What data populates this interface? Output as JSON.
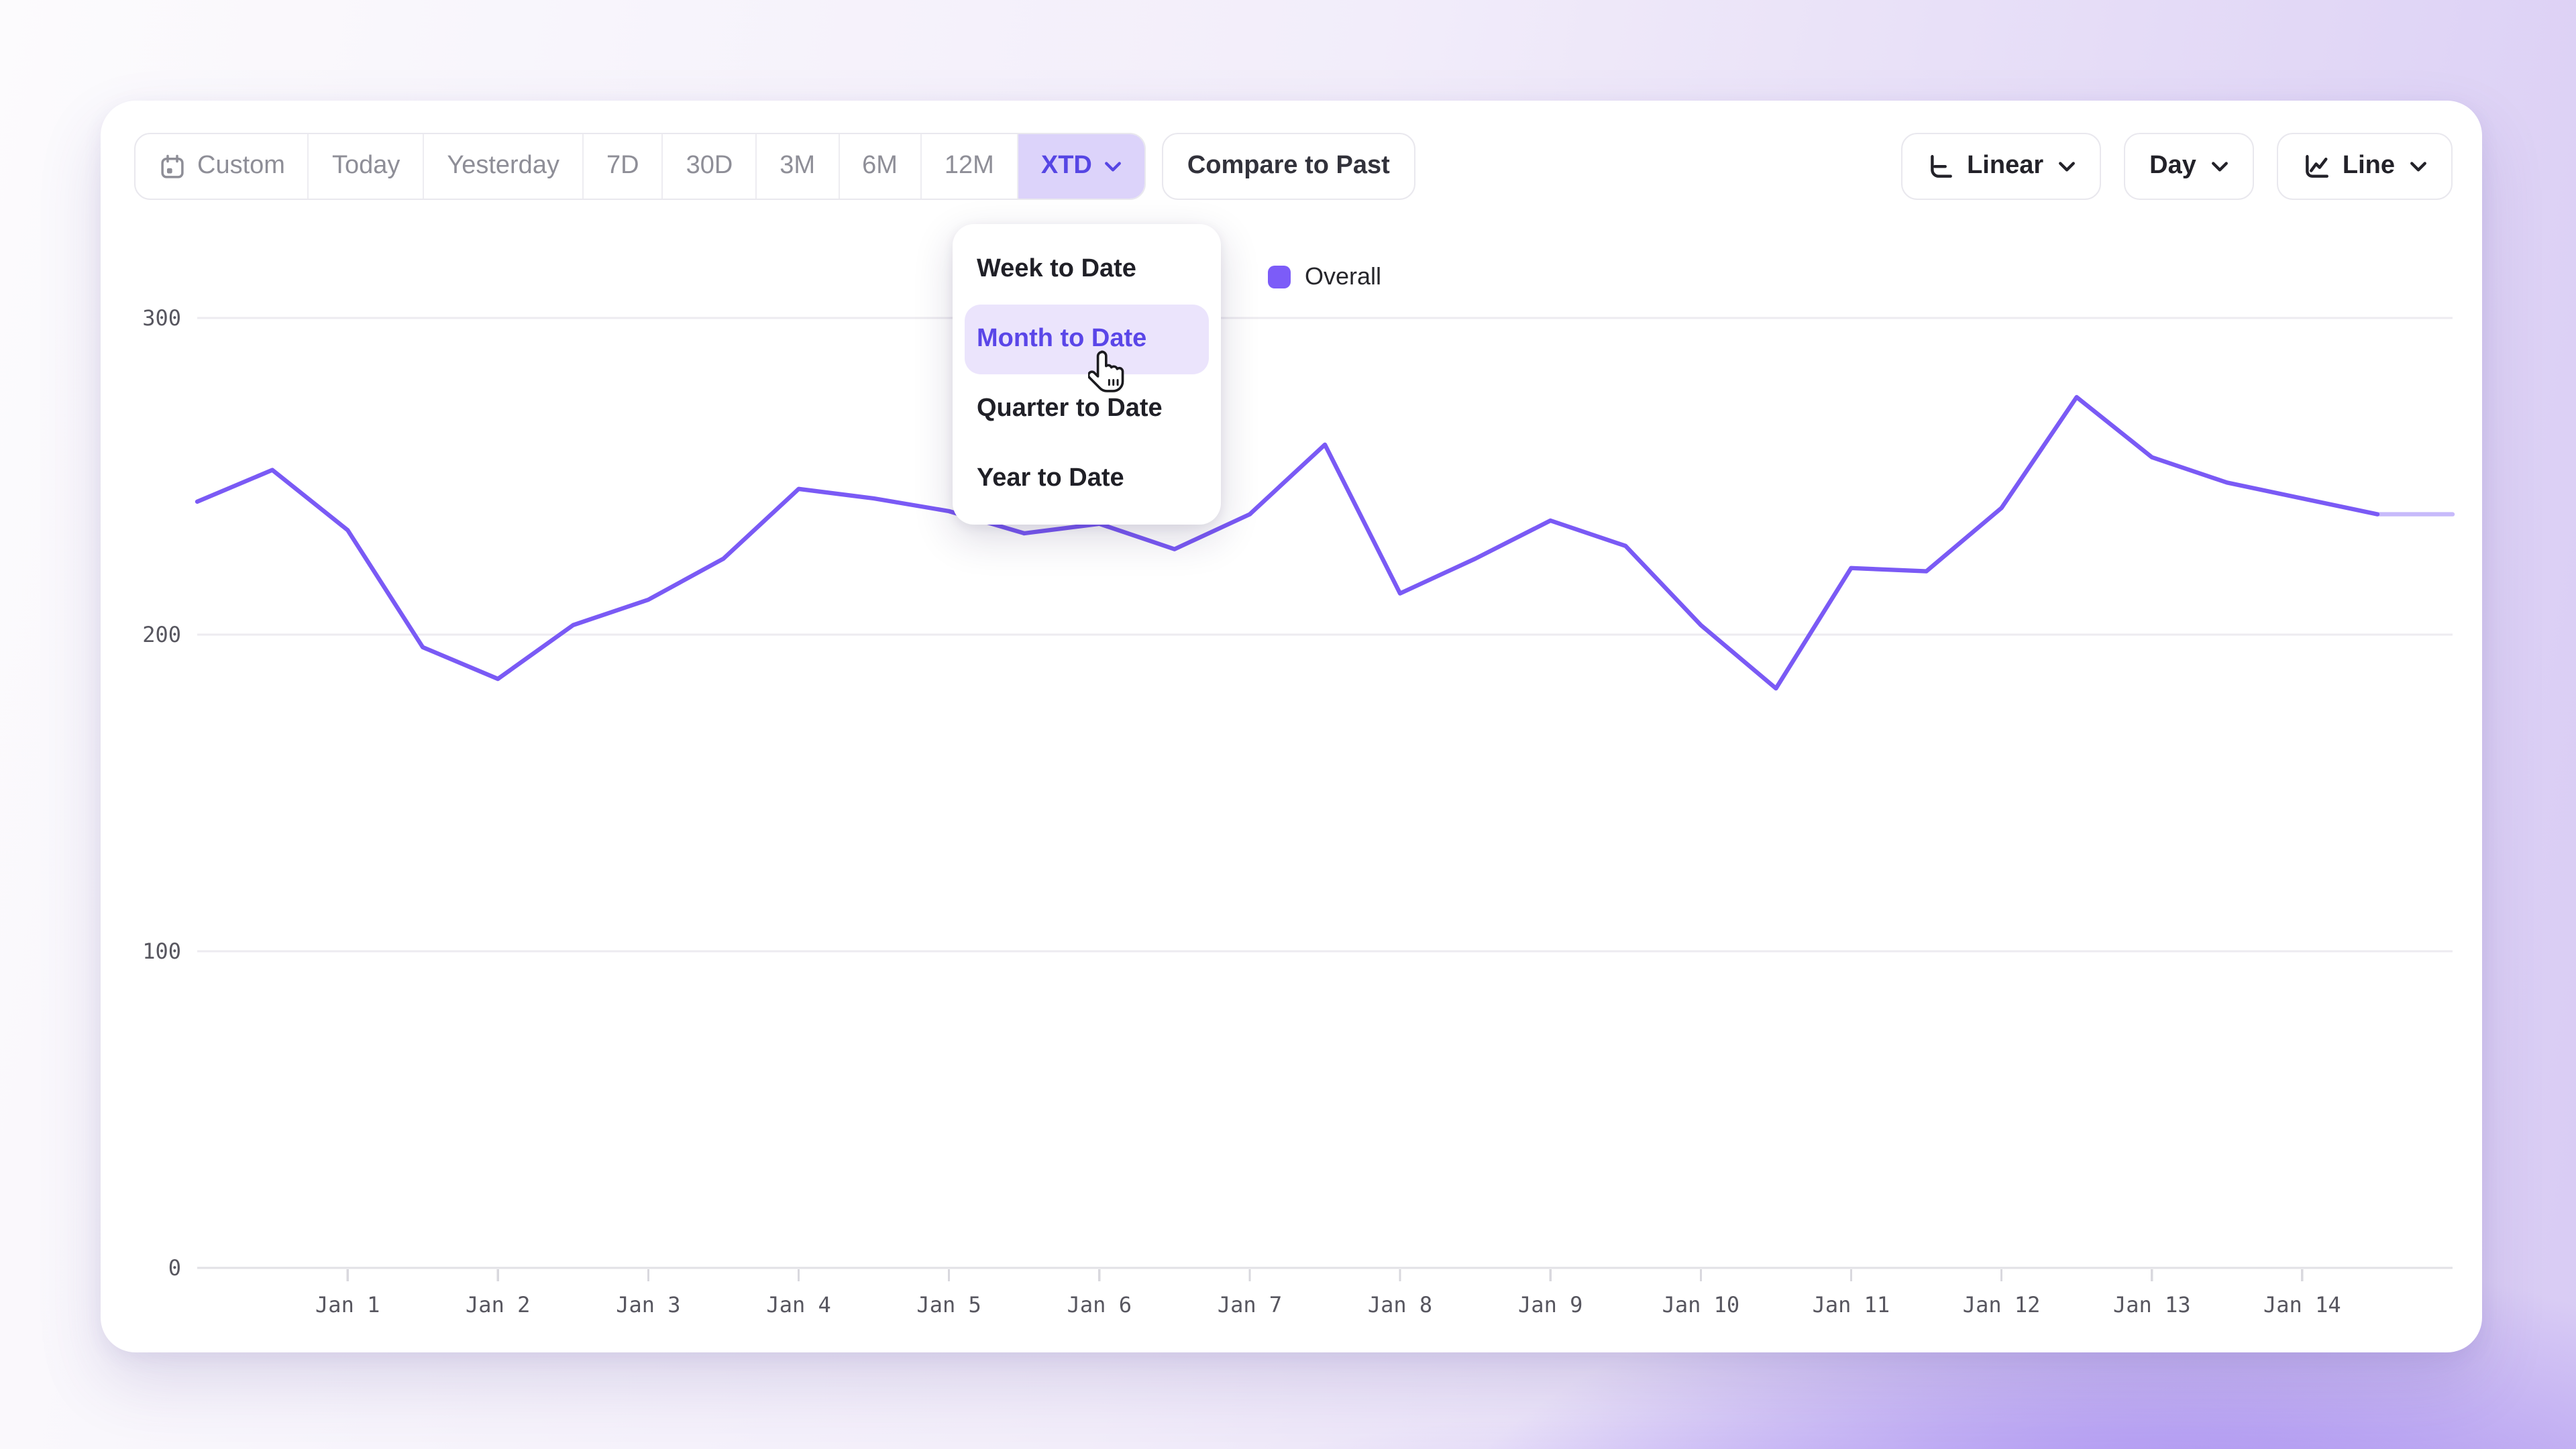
{
  "toolbar": {
    "range_buttons": [
      {
        "label": "Custom",
        "icon": "calendar-icon",
        "selected": false
      },
      {
        "label": "Today",
        "selected": false
      },
      {
        "label": "Yesterday",
        "selected": false
      },
      {
        "label": "7D",
        "selected": false
      },
      {
        "label": "30D",
        "selected": false
      },
      {
        "label": "3M",
        "selected": false
      },
      {
        "label": "6M",
        "selected": false
      },
      {
        "label": "12M",
        "selected": false
      },
      {
        "label": "XTD",
        "selected": true,
        "chevron": true
      }
    ],
    "compare_label": "Compare to Past",
    "scale_button": {
      "label": "Linear",
      "icon": "axis-scale-icon"
    },
    "granularity_button": {
      "label": "Day"
    },
    "chart_type_button": {
      "label": "Line",
      "icon": "line-chart-icon"
    }
  },
  "preset_menu": {
    "items": [
      {
        "label": "Week to Date",
        "highlighted": false
      },
      {
        "label": "Month to Date",
        "highlighted": true
      },
      {
        "label": "Quarter to Date",
        "highlighted": false
      },
      {
        "label": "Year to Date",
        "highlighted": false
      }
    ]
  },
  "legend": {
    "label": "Overall",
    "swatch_color": "#7c5cf8"
  },
  "colors": {
    "accent": "#5646e4",
    "accent_soft_bg": "#dcd3fa",
    "line": "#7a5af5",
    "menu_highlight_bg": "#ebe4fc",
    "menu_highlight_text": "#5a46e8",
    "gridline": "#edebf0",
    "axis_line": "#e2e1e6",
    "tick_label": "#57565f"
  },
  "chart_data": {
    "type": "line",
    "title": "",
    "x_tick_labels": [
      "Jan 1",
      "Jan 2",
      "Jan 3",
      "Jan 4",
      "Jan 5",
      "Jan 6",
      "Jan 7",
      "Jan 8",
      "Jan 9",
      "Jan 10",
      "Jan 11",
      "Jan 12",
      "Jan 13",
      "Jan 14"
    ],
    "x_tick_positions": [
      1,
      2,
      3,
      4,
      5,
      6,
      7,
      8,
      9,
      10,
      11,
      12,
      13,
      14
    ],
    "x_domain_days": [
      0,
      15
    ],
    "y_ticks": [
      0,
      100,
      200,
      300
    ],
    "ylim": [
      0,
      330
    ],
    "grid": "horizontal",
    "legend_position": "top-center",
    "series": [
      {
        "name": "Overall",
        "color": "#7a5af5",
        "last_segment_faded": true,
        "points": [
          [
            0,
            242
          ],
          [
            0.5,
            252
          ],
          [
            1,
            233
          ],
          [
            1.5,
            196
          ],
          [
            2,
            186
          ],
          [
            2.5,
            203
          ],
          [
            3,
            211
          ],
          [
            3.5,
            224
          ],
          [
            4,
            246
          ],
          [
            4.5,
            243
          ],
          [
            5,
            239
          ],
          [
            5.5,
            232
          ],
          [
            6,
            235
          ],
          [
            6.5,
            227
          ],
          [
            7,
            238
          ],
          [
            7.5,
            260
          ],
          [
            8,
            213
          ],
          [
            8.5,
            224
          ],
          [
            9,
            236
          ],
          [
            9.5,
            228
          ],
          [
            10,
            203
          ],
          [
            10.5,
            183
          ],
          [
            11,
            221
          ],
          [
            11.5,
            220
          ],
          [
            12,
            240
          ],
          [
            12.5,
            275
          ],
          [
            13,
            256
          ],
          [
            13.5,
            248
          ],
          [
            14,
            243
          ],
          [
            14.5,
            238
          ],
          [
            15,
            238
          ]
        ]
      }
    ]
  }
}
